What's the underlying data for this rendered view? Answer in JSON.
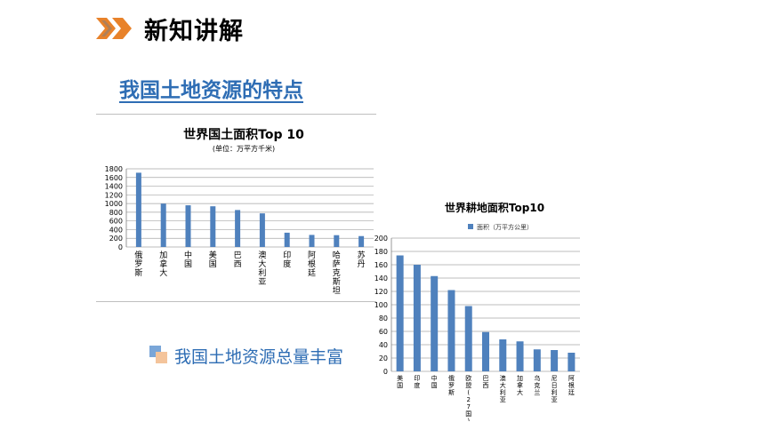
{
  "header": {
    "title": "新知讲解",
    "icon": "double-chevron-right-icon"
  },
  "subtitle": "我国土地资源的特点",
  "bullet": {
    "icon": "square-bullet-icon",
    "text": "我国土地资源总量丰富"
  },
  "colors": {
    "accent": "#2e6db4",
    "bar": "#4f81bd",
    "chevron_orange": "#e8822a"
  },
  "chart_data": [
    {
      "type": "bar",
      "title": "世界国土面积Top 10",
      "subtitle": "(单位：万平方千米)",
      "categories": [
        "俄罗斯",
        "加拿大",
        "中国",
        "美国",
        "巴西",
        "澳大利亚",
        "印度",
        "阿根廷",
        "哈萨克斯坦",
        "苏丹"
      ],
      "values": [
        1710,
        998,
        960,
        937,
        851,
        774,
        329,
        278,
        272,
        251
      ],
      "ylim": [
        0,
        1800
      ],
      "yticks": [
        "0",
        "200",
        "400",
        "600",
        "800",
        "1000",
        "1200",
        "1400",
        "1600",
        "1800"
      ],
      "grid": true
    },
    {
      "type": "bar",
      "title": "世界耕地面积Top10",
      "legend": "面积（万平方公里）",
      "categories": [
        "美国",
        "印度",
        "中国",
        "俄罗斯",
        "欧盟(27国)",
        "巴西",
        "澳大利亚",
        "加拿大",
        "乌克兰",
        "尼日利亚",
        "阿根廷"
      ],
      "values": [
        174,
        160,
        143,
        122,
        98,
        59,
        48,
        45,
        33,
        32,
        28
      ],
      "ylim": [
        0,
        200
      ],
      "yticks": [
        "0",
        "20",
        "40",
        "60",
        "80",
        "100",
        "120",
        "140",
        "160",
        "180",
        "200"
      ],
      "grid": true,
      "legend_position": "top"
    }
  ]
}
